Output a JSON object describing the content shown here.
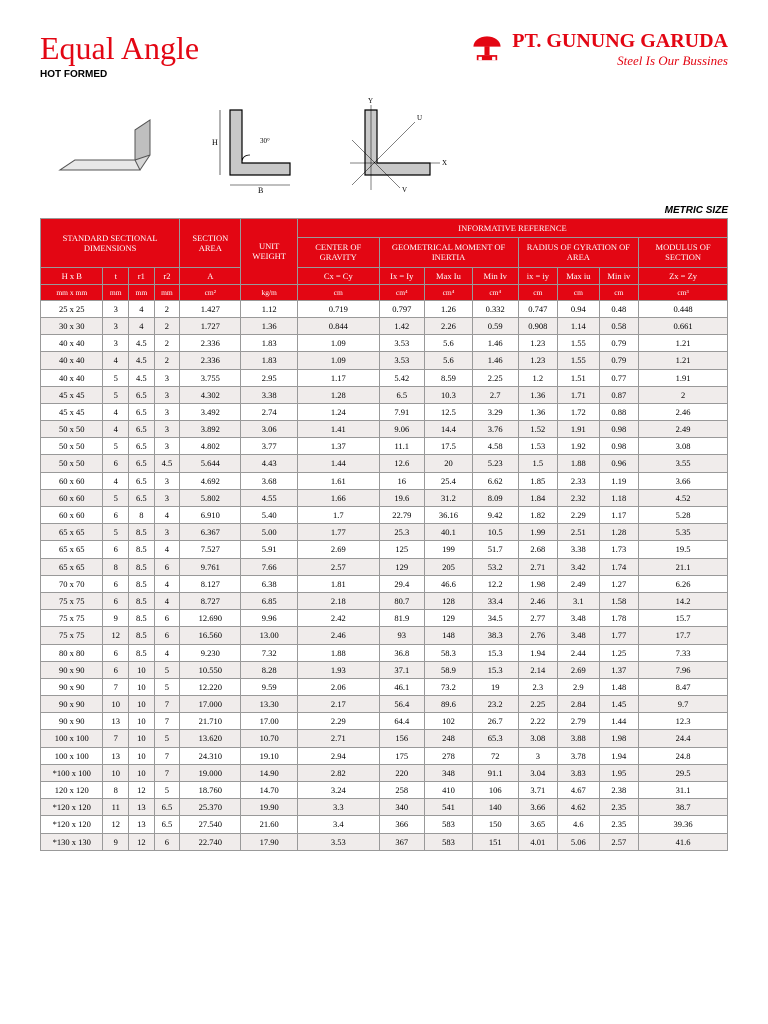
{
  "header": {
    "title": "Equal Angle",
    "subtitle": "HOT FORMED",
    "company": "PT. GUNUNG GARUDA",
    "tagline": "Steel Is Our Bussines"
  },
  "metric_label": "METRIC SIZE",
  "table": {
    "group_headers": {
      "dims": "STANDARD SECTIONAL DIMENSIONS",
      "area": "SECTION AREA",
      "weight": "UNIT WEIGHT",
      "info": "INFORMATIVE REFERENCE",
      "cog": "CENTER OF GRAVITY",
      "inertia": "GEOMETRICAL MOMENT OF INERTIA",
      "gyration": "RADIUS OF GYRATION OF AREA",
      "modulus": "MODULUS OF SECTION"
    },
    "symbols": [
      "H x B",
      "t",
      "r1",
      "r2",
      "A",
      "",
      "Cx = Cy",
      "Ix = Iy",
      "Max Iu",
      "Min Iv",
      "ix = iy",
      "Max iu",
      "Min iv",
      "Zx = Zy"
    ],
    "units": [
      "mm x mm",
      "mm",
      "mm",
      "mm",
      "cm²",
      "kg/m",
      "cm",
      "cm⁴",
      "cm⁴",
      "cm⁴",
      "cm",
      "cm",
      "cm",
      "cm³"
    ],
    "rows": [
      [
        "25 x 25",
        "3",
        "4",
        "2",
        "1.427",
        "1.12",
        "0.719",
        "0.797",
        "1.26",
        "0.332",
        "0.747",
        "0.94",
        "0.48",
        "0.448"
      ],
      [
        "30 x 30",
        "3",
        "4",
        "2",
        "1.727",
        "1.36",
        "0.844",
        "1.42",
        "2.26",
        "0.59",
        "0.908",
        "1.14",
        "0.58",
        "0.661"
      ],
      [
        "40 x 40",
        "3",
        "4.5",
        "2",
        "2.336",
        "1.83",
        "1.09",
        "3.53",
        "5.6",
        "1.46",
        "1.23",
        "1.55",
        "0.79",
        "1.21"
      ],
      [
        "40 x 40",
        "4",
        "4.5",
        "2",
        "2.336",
        "1.83",
        "1.09",
        "3.53",
        "5.6",
        "1.46",
        "1.23",
        "1.55",
        "0.79",
        "1.21"
      ],
      [
        "40 x 40",
        "5",
        "4.5",
        "3",
        "3.755",
        "2.95",
        "1.17",
        "5.42",
        "8.59",
        "2.25",
        "1.2",
        "1.51",
        "0.77",
        "1.91"
      ],
      [
        "45 x 45",
        "5",
        "6.5",
        "3",
        "4.302",
        "3.38",
        "1.28",
        "6.5",
        "10.3",
        "2.7",
        "1.36",
        "1.71",
        "0.87",
        "2"
      ],
      [
        "45 x 45",
        "4",
        "6.5",
        "3",
        "3.492",
        "2.74",
        "1.24",
        "7.91",
        "12.5",
        "3.29",
        "1.36",
        "1.72",
        "0.88",
        "2.46"
      ],
      [
        "50 x 50",
        "4",
        "6.5",
        "3",
        "3.892",
        "3.06",
        "1.41",
        "9.06",
        "14.4",
        "3.76",
        "1.52",
        "1.91",
        "0.98",
        "2.49"
      ],
      [
        "50 x 50",
        "5",
        "6.5",
        "3",
        "4.802",
        "3.77",
        "1.37",
        "11.1",
        "17.5",
        "4.58",
        "1.53",
        "1.92",
        "0.98",
        "3.08"
      ],
      [
        "50 x 50",
        "6",
        "6.5",
        "4.5",
        "5.644",
        "4.43",
        "1.44",
        "12.6",
        "20",
        "5.23",
        "1.5",
        "1.88",
        "0.96",
        "3.55"
      ],
      [
        "60 x 60",
        "4",
        "6.5",
        "3",
        "4.692",
        "3.68",
        "1.61",
        "16",
        "25.4",
        "6.62",
        "1.85",
        "2.33",
        "1.19",
        "3.66"
      ],
      [
        "60 x 60",
        "5",
        "6.5",
        "3",
        "5.802",
        "4.55",
        "1.66",
        "19.6",
        "31.2",
        "8.09",
        "1.84",
        "2.32",
        "1.18",
        "4.52"
      ],
      [
        "60 x 60",
        "6",
        "8",
        "4",
        "6.910",
        "5.40",
        "1.7",
        "22.79",
        "36.16",
        "9.42",
        "1.82",
        "2.29",
        "1.17",
        "5.28"
      ],
      [
        "65 x 65",
        "5",
        "8.5",
        "3",
        "6.367",
        "5.00",
        "1.77",
        "25.3",
        "40.1",
        "10.5",
        "1.99",
        "2.51",
        "1.28",
        "5.35"
      ],
      [
        "65 x 65",
        "6",
        "8.5",
        "4",
        "7.527",
        "5.91",
        "2.69",
        "125",
        "199",
        "51.7",
        "2.68",
        "3.38",
        "1.73",
        "19.5"
      ],
      [
        "65 x 65",
        "8",
        "8.5",
        "6",
        "9.761",
        "7.66",
        "2.57",
        "129",
        "205",
        "53.2",
        "2.71",
        "3.42",
        "1.74",
        "21.1"
      ],
      [
        "70 x 70",
        "6",
        "8.5",
        "4",
        "8.127",
        "6.38",
        "1.81",
        "29.4",
        "46.6",
        "12.2",
        "1.98",
        "2.49",
        "1.27",
        "6.26"
      ],
      [
        "75 x 75",
        "6",
        "8.5",
        "4",
        "8.727",
        "6.85",
        "2.18",
        "80.7",
        "128",
        "33.4",
        "2.46",
        "3.1",
        "1.58",
        "14.2"
      ],
      [
        "75 x 75",
        "9",
        "8.5",
        "6",
        "12.690",
        "9.96",
        "2.42",
        "81.9",
        "129",
        "34.5",
        "2.77",
        "3.48",
        "1.78",
        "15.7"
      ],
      [
        "75 x 75",
        "12",
        "8.5",
        "6",
        "16.560",
        "13.00",
        "2.46",
        "93",
        "148",
        "38.3",
        "2.76",
        "3.48",
        "1.77",
        "17.7"
      ],
      [
        "80 x 80",
        "6",
        "8.5",
        "4",
        "9.230",
        "7.32",
        "1.88",
        "36.8",
        "58.3",
        "15.3",
        "1.94",
        "2.44",
        "1.25",
        "7.33"
      ],
      [
        "90 x 90",
        "6",
        "10",
        "5",
        "10.550",
        "8.28",
        "1.93",
        "37.1",
        "58.9",
        "15.3",
        "2.14",
        "2.69",
        "1.37",
        "7.96"
      ],
      [
        "90 x 90",
        "7",
        "10",
        "5",
        "12.220",
        "9.59",
        "2.06",
        "46.1",
        "73.2",
        "19",
        "2.3",
        "2.9",
        "1.48",
        "8.47"
      ],
      [
        "90 x 90",
        "10",
        "10",
        "7",
        "17.000",
        "13.30",
        "2.17",
        "56.4",
        "89.6",
        "23.2",
        "2.25",
        "2.84",
        "1.45",
        "9.7"
      ],
      [
        "90 x 90",
        "13",
        "10",
        "7",
        "21.710",
        "17.00",
        "2.29",
        "64.4",
        "102",
        "26.7",
        "2.22",
        "2.79",
        "1.44",
        "12.3"
      ],
      [
        "100 x 100",
        "7",
        "10",
        "5",
        "13.620",
        "10.70",
        "2.71",
        "156",
        "248",
        "65.3",
        "3.08",
        "3.88",
        "1.98",
        "24.4"
      ],
      [
        "100 x 100",
        "13",
        "10",
        "7",
        "24.310",
        "19.10",
        "2.94",
        "175",
        "278",
        "72",
        "3",
        "3.78",
        "1.94",
        "24.8"
      ],
      [
        "*100 x 100",
        "10",
        "10",
        "7",
        "19.000",
        "14.90",
        "2.82",
        "220",
        "348",
        "91.1",
        "3.04",
        "3.83",
        "1.95",
        "29.5"
      ],
      [
        "120 x 120",
        "8",
        "12",
        "5",
        "18.760",
        "14.70",
        "3.24",
        "258",
        "410",
        "106",
        "3.71",
        "4.67",
        "2.38",
        "31.1"
      ],
      [
        "*120 x 120",
        "11",
        "13",
        "6.5",
        "25.370",
        "19.90",
        "3.3",
        "340",
        "541",
        "140",
        "3.66",
        "4.62",
        "2.35",
        "38.7"
      ],
      [
        "*120 x 120",
        "12",
        "13",
        "6.5",
        "27.540",
        "21.60",
        "3.4",
        "366",
        "583",
        "150",
        "3.65",
        "4.6",
        "2.35",
        "39.36"
      ],
      [
        "*130 x 130",
        "9",
        "12",
        "6",
        "22.740",
        "17.90",
        "3.53",
        "367",
        "583",
        "151",
        "4.01",
        "5.06",
        "2.57",
        "41.6"
      ]
    ]
  },
  "colors": {
    "brand_red": "#e30613",
    "row_alt": "#f0eceb",
    "border": "#999999"
  }
}
